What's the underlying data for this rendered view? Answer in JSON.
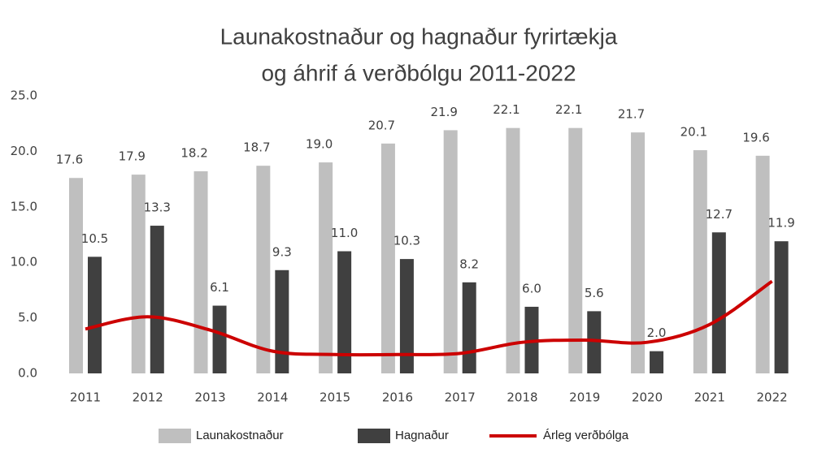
{
  "chart_data": {
    "type": "bar",
    "title": [
      "Launakostnaður og hagnaður fyrirtækja",
      "og áhrif á verðbólgu 2011-2022"
    ],
    "categories": [
      "2011",
      "2012",
      "2013",
      "2014",
      "2015",
      "2016",
      "2017",
      "2018",
      "2019",
      "2020",
      "2021",
      "2022"
    ],
    "series": [
      {
        "name": "Launakostnaður",
        "type": "bar",
        "color": "#bfbfbf",
        "values": [
          17.6,
          17.9,
          18.2,
          18.7,
          19.0,
          20.7,
          21.9,
          22.1,
          22.1,
          21.7,
          20.1,
          19.6
        ],
        "value_labels": [
          "17.6",
          "17.9",
          "18.2",
          "18.7",
          "19.0",
          "20.7",
          "21.9",
          "22.1",
          "22.1",
          "21.7",
          "20.1",
          "19.6"
        ]
      },
      {
        "name": "Hagnaður",
        "type": "bar",
        "color": "#404040",
        "values": [
          10.5,
          13.3,
          6.1,
          9.3,
          11.0,
          10.3,
          8.2,
          6.0,
          5.6,
          2.0,
          12.7,
          11.9
        ],
        "value_labels": [
          "10.5",
          "13.3",
          "6.1",
          "9.3",
          "11.0",
          "10.3",
          "8.2",
          "6.0",
          "5.6",
          "2.0",
          "12.7",
          "11.9"
        ]
      },
      {
        "name": "Árleg verðbólga",
        "type": "line",
        "color": "#cc0000",
        "values": [
          4.0,
          5.1,
          3.9,
          2.0,
          1.7,
          1.7,
          1.8,
          2.8,
          3.0,
          2.8,
          4.4,
          8.3
        ]
      }
    ],
    "ylim": [
      0,
      25
    ],
    "yticks": [
      {
        "value": 0,
        "label": "0.0"
      },
      {
        "value": 5,
        "label": "5.0"
      },
      {
        "value": 10,
        "label": "10.0"
      },
      {
        "value": 15,
        "label": "15.0"
      },
      {
        "value": 20,
        "label": "20.0"
      },
      {
        "value": 25,
        "label": "25.0"
      }
    ],
    "grid": false,
    "legend": "bottom"
  }
}
